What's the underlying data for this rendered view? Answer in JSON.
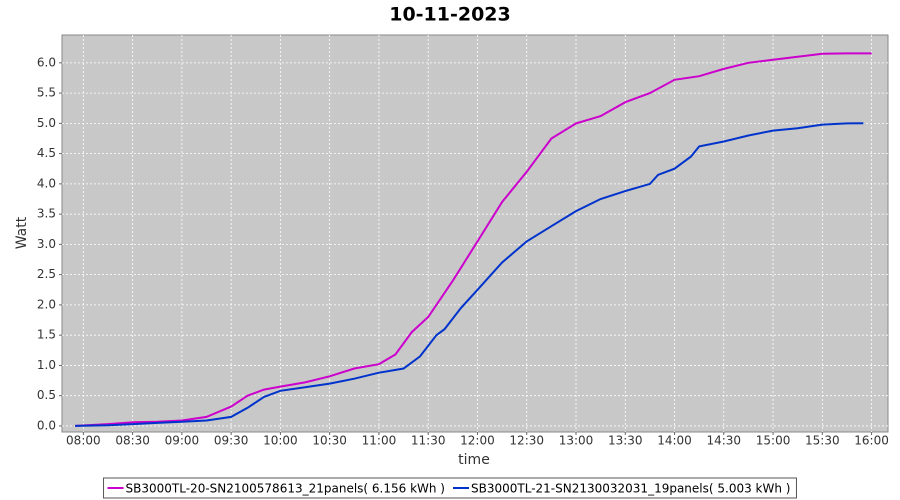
{
  "chart_data": {
    "type": "line",
    "title": "10-11-2023",
    "x_label": "time",
    "y_label": "Watt",
    "xlim": [
      "07:47",
      "16:10"
    ],
    "xticks": [
      "08:00",
      "08:30",
      "09:00",
      "09:30",
      "10:00",
      "10:30",
      "11:00",
      "11:30",
      "12:00",
      "12:30",
      "13:00",
      "13:30",
      "14:00",
      "14:30",
      "15:00",
      "15:30",
      "16:00"
    ],
    "ylim": [
      -0.1,
      6.46
    ],
    "yticks": [
      {
        "value": 0,
        "label": "0.0"
      },
      0.5,
      {
        "value": 1,
        "label": "1.0"
      },
      1.5,
      {
        "value": 2,
        "label": "2.0"
      },
      2.5,
      {
        "value": 3,
        "label": "3.0"
      },
      3.5,
      {
        "value": 4,
        "label": "4.0"
      },
      4.5,
      {
        "value": 5,
        "label": "5.0"
      },
      5.5,
      {
        "value": 6,
        "label": "6.0"
      }
    ],
    "grid": true,
    "series": [
      {
        "name": "SB3000TL-20-SN2100578613_21panels( 6.156 kWh )",
        "color": "#cc00cc",
        "x": [
          "07:55",
          "08:15",
          "08:30",
          "08:45",
          "09:00",
          "09:15",
          "09:30",
          "09:40",
          "09:50",
          "10:00",
          "10:15",
          "10:30",
          "10:45",
          "11:00",
          "11:10",
          "11:20",
          "11:30",
          "11:45",
          "12:00",
          "12:15",
          "12:30",
          "12:45",
          "13:00",
          "13:15",
          "13:30",
          "13:45",
          "14:00",
          "14:15",
          "14:30",
          "14:45",
          "15:00",
          "15:15",
          "15:30",
          "15:45",
          "16:00"
        ],
        "values": [
          0.0,
          0.03,
          0.06,
          0.07,
          0.09,
          0.15,
          0.32,
          0.5,
          0.6,
          0.65,
          0.72,
          0.82,
          0.95,
          1.02,
          1.18,
          1.55,
          1.8,
          2.4,
          3.05,
          3.7,
          4.2,
          4.75,
          5.0,
          5.12,
          5.35,
          5.5,
          5.72,
          5.78,
          5.9,
          6.0,
          6.05,
          6.1,
          6.15,
          6.156,
          6.156
        ]
      },
      {
        "name": "SB3000TL-21-SN2130032031_19panels( 5.003 kWh )",
        "color": "#0033cc",
        "x": [
          "07:55",
          "08:15",
          "08:30",
          "08:45",
          "09:00",
          "09:15",
          "09:30",
          "09:40",
          "09:50",
          "10:00",
          "10:15",
          "10:30",
          "10:45",
          "11:00",
          "11:15",
          "11:25",
          "11:35",
          "11:40",
          "11:50",
          "12:00",
          "12:15",
          "12:30",
          "12:45",
          "13:00",
          "13:15",
          "13:30",
          "13:45",
          "13:50",
          "14:00",
          "14:10",
          "14:15",
          "14:30",
          "14:45",
          "15:00",
          "15:15",
          "15:30",
          "15:45",
          "15:55"
        ],
        "values": [
          0.0,
          0.01,
          0.03,
          0.05,
          0.07,
          0.09,
          0.15,
          0.3,
          0.48,
          0.58,
          0.64,
          0.7,
          0.78,
          0.88,
          0.95,
          1.15,
          1.5,
          1.6,
          1.95,
          2.25,
          2.7,
          3.05,
          3.3,
          3.55,
          3.75,
          3.88,
          4.0,
          4.15,
          4.25,
          4.45,
          4.62,
          4.7,
          4.8,
          4.88,
          4.92,
          4.98,
          5.0,
          5.003
        ]
      }
    ]
  }
}
